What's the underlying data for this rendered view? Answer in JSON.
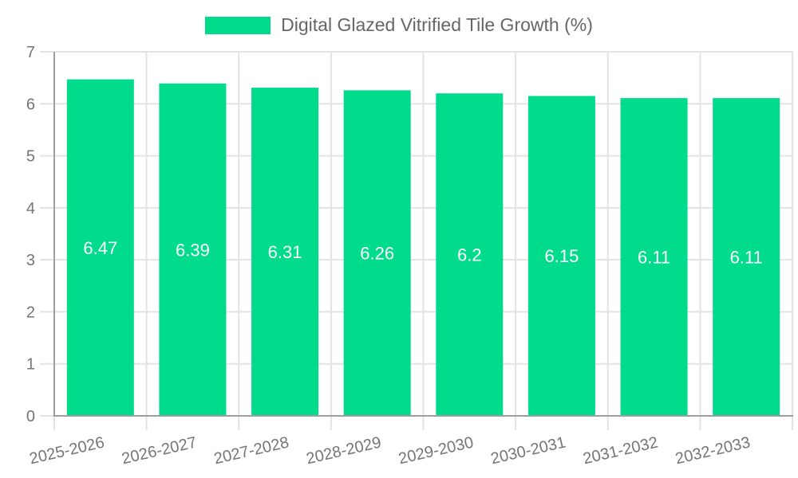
{
  "chart_data": {
    "type": "bar",
    "title": "Digital Glazed Vitrified Tile Growth (%)",
    "legend_label": "Digital Glazed Vitrified Tile Growth (%)",
    "legend_position": "top",
    "categories": [
      "2025-2026",
      "2026-2027",
      "2027-2028",
      "2028-2029",
      "2029-2030",
      "2030-2031",
      "2031-2032",
      "2032-2033"
    ],
    "values": [
      6.47,
      6.39,
      6.31,
      6.26,
      6.2,
      6.15,
      6.11,
      6.11
    ],
    "value_labels": [
      "6.47",
      "6.39",
      "6.31",
      "6.26",
      "6.2",
      "6.15",
      "6.11",
      "6.11"
    ],
    "xlabel": "",
    "ylabel": "",
    "ylim": [
      0,
      7
    ],
    "ytick_step": 1,
    "grid": true,
    "bar_color": "#00DC8C",
    "value_label_color": "#FFFFFF",
    "grid_color": "#E3E3E3",
    "axis_color": "#9E9E9E",
    "tick_label_color": "#757575",
    "legend_text_color": "#666666",
    "background": "#FFFFFF"
  }
}
